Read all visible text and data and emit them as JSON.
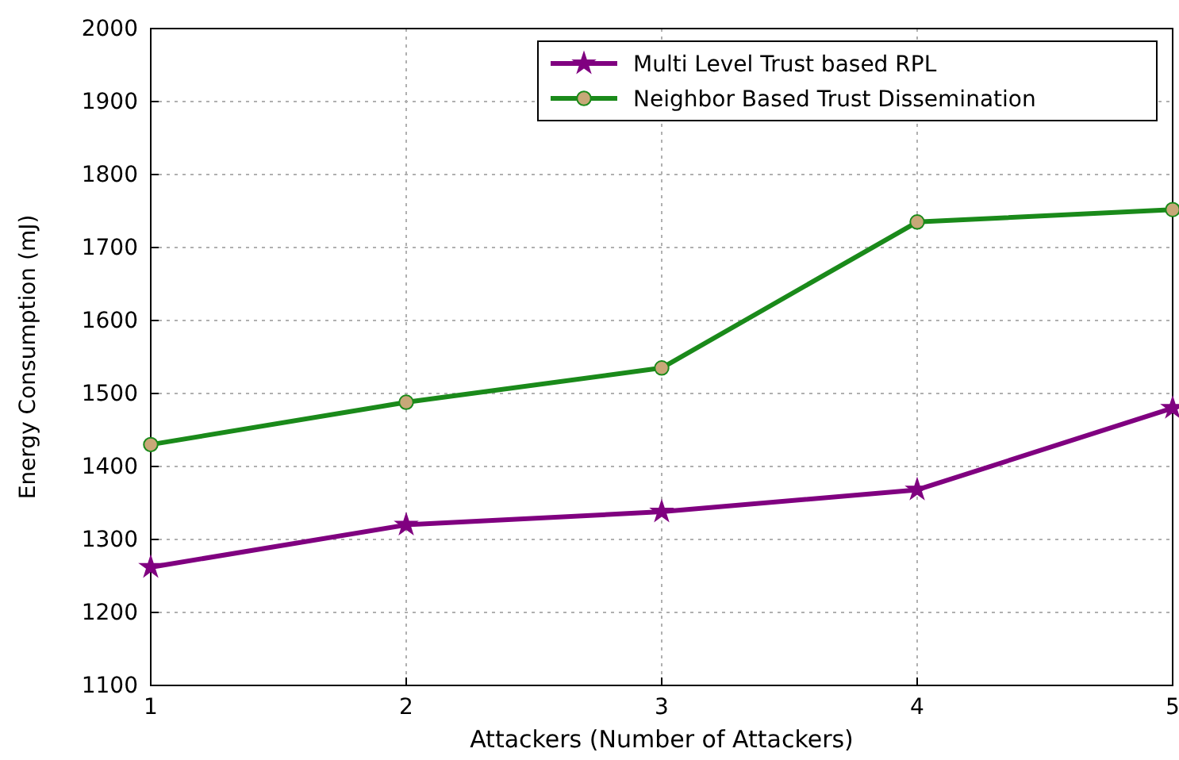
{
  "chart_data": {
    "type": "line",
    "xlabel": "Attackers (Number of Attackers)",
    "ylabel": "Energy Consumption (mJ)",
    "x": [
      1,
      2,
      3,
      4,
      5
    ],
    "series": [
      {
        "name": "Multi Level Trust based RPL",
        "color": "#800080",
        "marker": "star",
        "values": [
          1262,
          1320,
          1338,
          1368,
          1480
        ]
      },
      {
        "name": "Neighbor Based Trust Dissemination",
        "color": "#1a8a1a",
        "marker": "circle",
        "values": [
          1430,
          1488,
          1535,
          1735,
          1752
        ]
      }
    ],
    "xlim": [
      1,
      5
    ],
    "xticks": [
      1,
      2,
      3,
      4,
      5
    ],
    "ylim": [
      1100,
      2000
    ],
    "yticks": [
      1100,
      1200,
      1300,
      1400,
      1500,
      1600,
      1700,
      1800,
      1900,
      2000
    ],
    "grid": true,
    "legend": "top right",
    "line_style": "solid"
  }
}
